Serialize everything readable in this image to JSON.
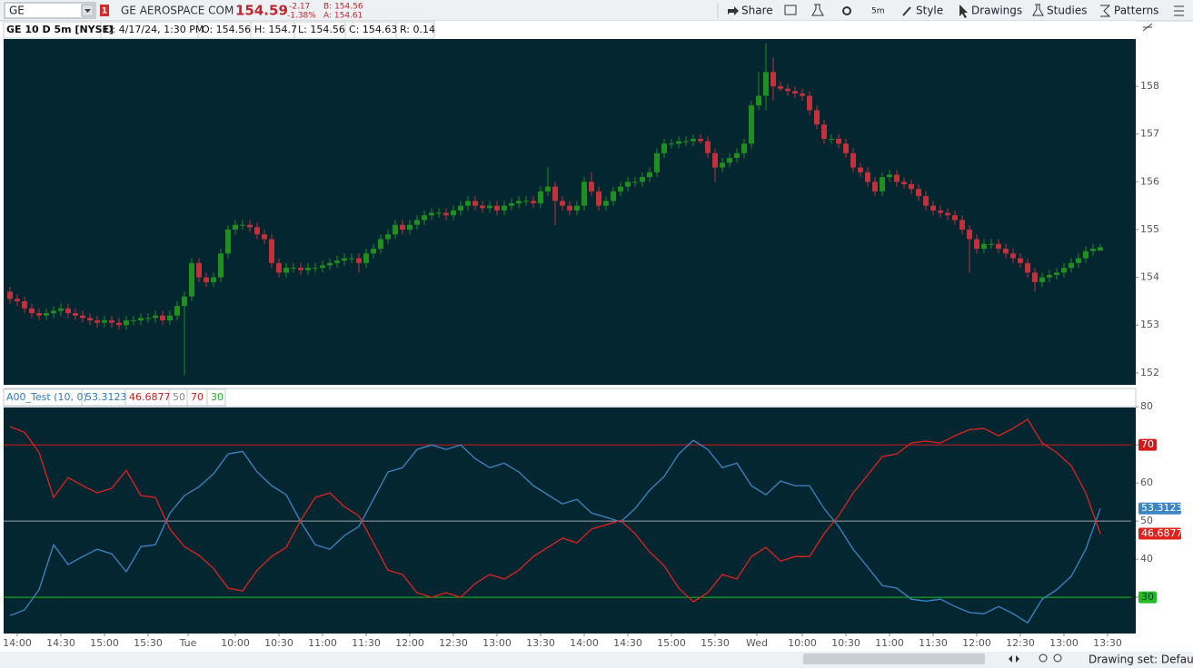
{
  "toolbar": {
    "symbol": "GE",
    "alert": "1",
    "company": "GE AEROSPACE COM",
    "last": "154.59",
    "change": "-2.17",
    "change_pct": "-1.38%",
    "bid": "B: 154.56",
    "ask": "A: 154.61",
    "buttons": [
      "Share",
      "5m",
      "Style",
      "Drawings",
      "Studies",
      "Patterns"
    ]
  },
  "info_bar": {
    "symbol": "GE 10 D 5m [NYSE]",
    "date": "D: 4/17/24, 1:30 PM",
    "open": "O: 154.56",
    "high": "H: 154.7",
    "low": "L: 154.56",
    "close": "C: 154.63",
    "range": "R: 0.14"
  },
  "chart_data": [
    {
      "type": "candlestick",
      "up_color": "#1f8f1f",
      "down_color": "#c2313a",
      "background": "#032631",
      "xlim": [
        -0.875,
        154.875
      ],
      "ylim": [
        151.75,
        158.99
      ],
      "yticks": [
        152,
        153,
        154,
        155,
        156,
        157,
        158
      ],
      "open": [
        153.7,
        153.55,
        153.5,
        153.35,
        153.25,
        153.2,
        153.25,
        153.3,
        153.35,
        153.25,
        153.2,
        153.15,
        153.1,
        153.05,
        153.1,
        153.05,
        153.0,
        153.1,
        153.1,
        153.15,
        153.15,
        153.2,
        153.1,
        153.2,
        153.4,
        153.6,
        154.3,
        154.0,
        153.9,
        154.0,
        154.5,
        155.0,
        155.1,
        155.1,
        155.05,
        154.9,
        154.8,
        154.3,
        154.1,
        154.2,
        154.2,
        154.15,
        154.2,
        154.2,
        154.25,
        154.3,
        154.35,
        154.4,
        154.4,
        154.3,
        154.5,
        154.6,
        154.8,
        154.9,
        155.1,
        155.0,
        155.1,
        155.2,
        155.3,
        155.35,
        155.35,
        155.3,
        155.4,
        155.5,
        155.6,
        155.5,
        155.45,
        155.5,
        155.4,
        155.5,
        155.55,
        155.6,
        155.6,
        155.55,
        155.8,
        155.9,
        155.6,
        155.5,
        155.4,
        155.5,
        156.0,
        155.8,
        155.5,
        155.6,
        155.8,
        155.9,
        156.0,
        156.0,
        156.1,
        156.2,
        156.6,
        156.8,
        156.8,
        156.85,
        156.85,
        156.9,
        156.85,
        156.6,
        156.3,
        156.4,
        156.5,
        156.6,
        156.8,
        157.6,
        157.8,
        158.3,
        158.0,
        157.95,
        157.9,
        157.85,
        157.8,
        157.5,
        157.2,
        156.9,
        156.9,
        156.8,
        156.6,
        156.3,
        156.2,
        156.0,
        155.8,
        156.1,
        156.15,
        156.0,
        155.95,
        155.85,
        155.7,
        155.5,
        155.4,
        155.35,
        155.3,
        155.2,
        155.0,
        154.8,
        154.6,
        154.7,
        154.7,
        154.6,
        154.5,
        154.4,
        154.3,
        154.1,
        153.9,
        154.0,
        154.05,
        154.1,
        154.2,
        154.3,
        154.4,
        154.55,
        154.56
      ],
      "high": [
        153.8,
        153.65,
        153.6,
        153.45,
        153.35,
        153.35,
        153.4,
        153.45,
        153.45,
        153.35,
        153.3,
        153.25,
        153.2,
        153.2,
        153.2,
        153.15,
        153.2,
        153.2,
        153.25,
        153.25,
        153.3,
        153.3,
        153.3,
        153.5,
        153.7,
        154.4,
        154.4,
        154.1,
        154.1,
        154.6,
        155.1,
        155.2,
        155.2,
        155.2,
        155.15,
        155.0,
        154.9,
        154.4,
        154.3,
        154.3,
        154.3,
        154.3,
        154.3,
        154.35,
        154.4,
        154.45,
        154.5,
        154.5,
        154.5,
        154.6,
        154.7,
        154.9,
        155.0,
        155.2,
        155.2,
        155.2,
        155.3,
        155.4,
        155.45,
        155.45,
        155.45,
        155.5,
        155.6,
        155.7,
        155.7,
        155.6,
        155.6,
        155.6,
        155.6,
        155.65,
        155.7,
        155.7,
        155.7,
        155.9,
        156.3,
        156.0,
        155.7,
        155.6,
        155.6,
        156.1,
        156.2,
        155.9,
        155.7,
        155.9,
        156.0,
        156.1,
        156.1,
        156.2,
        156.3,
        156.7,
        156.9,
        156.9,
        156.95,
        156.95,
        157.0,
        157.0,
        156.95,
        156.7,
        156.5,
        156.6,
        156.7,
        156.9,
        157.7,
        158.3,
        158.9,
        158.6,
        158.1,
        158.05,
        158.0,
        157.95,
        157.9,
        157.6,
        157.3,
        157.0,
        157.0,
        156.9,
        156.7,
        156.4,
        156.3,
        156.1,
        156.2,
        156.25,
        156.25,
        156.1,
        156.05,
        155.95,
        155.8,
        155.6,
        155.5,
        155.45,
        155.4,
        155.3,
        155.1,
        154.9,
        154.8,
        154.8,
        154.8,
        154.7,
        154.6,
        154.5,
        154.4,
        154.2,
        154.1,
        154.15,
        154.2,
        154.3,
        154.4,
        154.5,
        154.65,
        154.7,
        154.7
      ],
      "low": [
        153.45,
        153.4,
        153.25,
        153.15,
        153.1,
        153.1,
        153.15,
        153.2,
        153.15,
        153.1,
        153.05,
        153.0,
        152.95,
        152.95,
        152.95,
        152.9,
        152.9,
        153.0,
        153.0,
        153.05,
        153.05,
        153.0,
        153.0,
        153.1,
        151.95,
        153.5,
        153.9,
        153.8,
        153.8,
        153.9,
        154.4,
        154.9,
        155.0,
        154.95,
        154.8,
        154.7,
        154.2,
        154.0,
        154.0,
        154.1,
        154.05,
        154.05,
        154.1,
        154.1,
        154.15,
        154.2,
        154.25,
        154.3,
        154.1,
        154.2,
        154.4,
        154.5,
        154.7,
        154.8,
        154.9,
        154.9,
        155.0,
        155.1,
        155.2,
        155.25,
        155.2,
        155.2,
        155.3,
        155.4,
        155.4,
        155.35,
        155.35,
        155.3,
        155.3,
        155.4,
        155.45,
        155.5,
        155.45,
        155.45,
        155.7,
        155.1,
        155.4,
        155.3,
        155.3,
        155.4,
        155.7,
        155.4,
        155.4,
        155.5,
        155.7,
        155.8,
        155.9,
        155.9,
        156.0,
        156.1,
        156.5,
        156.7,
        156.7,
        156.75,
        156.75,
        156.8,
        156.5,
        156.0,
        156.2,
        156.3,
        156.4,
        156.5,
        156.7,
        157.5,
        157.5,
        157.7,
        157.9,
        157.8,
        157.75,
        157.7,
        157.4,
        157.1,
        156.8,
        156.8,
        156.7,
        156.5,
        156.2,
        156.1,
        155.9,
        155.7,
        155.7,
        156.0,
        155.9,
        155.85,
        155.75,
        155.6,
        155.4,
        155.3,
        155.25,
        155.2,
        155.1,
        154.9,
        154.1,
        154.5,
        154.5,
        154.6,
        154.5,
        154.4,
        154.3,
        154.2,
        154.0,
        153.7,
        153.8,
        153.9,
        153.95,
        154.0,
        154.1,
        154.2,
        154.3,
        154.45,
        154.56
      ],
      "close": [
        153.55,
        153.5,
        153.35,
        153.25,
        153.2,
        153.25,
        153.3,
        153.35,
        153.25,
        153.2,
        153.15,
        153.1,
        153.05,
        153.1,
        153.05,
        153.0,
        153.1,
        153.1,
        153.15,
        153.15,
        153.2,
        153.1,
        153.2,
        153.4,
        153.6,
        154.3,
        154.0,
        153.9,
        154.0,
        154.5,
        155.0,
        155.1,
        155.1,
        155.05,
        154.9,
        154.8,
        154.3,
        154.1,
        154.2,
        154.2,
        154.15,
        154.2,
        154.2,
        154.25,
        154.3,
        154.35,
        154.4,
        154.4,
        154.3,
        154.5,
        154.6,
        154.8,
        154.9,
        155.1,
        155.0,
        155.1,
        155.2,
        155.3,
        155.35,
        155.35,
        155.3,
        155.4,
        155.5,
        155.6,
        155.5,
        155.45,
        155.5,
        155.4,
        155.5,
        155.55,
        155.6,
        155.6,
        155.55,
        155.8,
        155.9,
        155.6,
        155.5,
        155.4,
        155.5,
        156.0,
        155.8,
        155.5,
        155.6,
        155.8,
        155.9,
        156.0,
        156.0,
        156.1,
        156.2,
        156.6,
        156.8,
        156.8,
        156.85,
        156.85,
        156.9,
        156.85,
        156.6,
        156.3,
        156.4,
        156.5,
        156.6,
        156.8,
        157.6,
        157.8,
        158.3,
        158.0,
        157.95,
        157.9,
        157.85,
        157.8,
        157.5,
        157.2,
        156.9,
        156.9,
        156.8,
        156.6,
        156.3,
        156.2,
        156.0,
        155.8,
        156.1,
        156.15,
        156.0,
        155.95,
        155.85,
        155.7,
        155.5,
        155.4,
        155.35,
        155.3,
        155.2,
        155.0,
        154.8,
        154.6,
        154.7,
        154.7,
        154.6,
        154.5,
        154.4,
        154.3,
        154.1,
        153.9,
        154.0,
        154.05,
        154.1,
        154.2,
        154.3,
        154.4,
        154.55,
        154.6,
        154.63
      ]
    },
    {
      "type": "line",
      "title": "A00_Test (10, 0)",
      "background": "#032631",
      "xlim": [
        -0.875,
        154.875
      ],
      "ylim": [
        20.5,
        79.8
      ],
      "yticks": [
        30,
        40,
        50,
        60,
        70,
        80
      ],
      "xticks": [
        {
          "value": 1,
          "label": "14:00"
        },
        {
          "value": 7,
          "label": "14:30"
        },
        {
          "value": 13,
          "label": "15:00"
        },
        {
          "value": 19,
          "label": "15:30"
        },
        {
          "value": 24.5,
          "label": "Tue"
        },
        {
          "value": 31,
          "label": "10:00"
        },
        {
          "value": 37,
          "label": "10:30"
        },
        {
          "value": 43,
          "label": "11:00"
        },
        {
          "value": 49,
          "label": "11:30"
        },
        {
          "value": 55,
          "label": "12:00"
        },
        {
          "value": 61,
          "label": "12:30"
        },
        {
          "value": 67,
          "label": "13:00"
        },
        {
          "value": 73,
          "label": "13:30"
        },
        {
          "value": 79,
          "label": "14:00"
        },
        {
          "value": 85,
          "label": "14:30"
        },
        {
          "value": 91,
          "label": "15:00"
        },
        {
          "value": 97,
          "label": "15:30"
        },
        {
          "value": 102.75,
          "label": "Wed"
        },
        {
          "value": 109,
          "label": "10:00"
        },
        {
          "value": 115,
          "label": "10:30"
        },
        {
          "value": 121,
          "label": "11:00"
        },
        {
          "value": 127,
          "label": "11:30"
        },
        {
          "value": 133,
          "label": "12:00"
        },
        {
          "value": 139,
          "label": "12:30"
        },
        {
          "value": 145,
          "label": "13:00"
        },
        {
          "value": 151,
          "label": "13:30"
        }
      ],
      "x": [
        0,
        2,
        4,
        6,
        8,
        10,
        12,
        14,
        16,
        18,
        20,
        22,
        24,
        26,
        28,
        30,
        32,
        34,
        36,
        38,
        40,
        42,
        44,
        46,
        48,
        50,
        52,
        54,
        56,
        58,
        60,
        62,
        64,
        66,
        68,
        70,
        72,
        74,
        76,
        78,
        80,
        82,
        84,
        86,
        88,
        90,
        92,
        94,
        96,
        98,
        100,
        102,
        104,
        106,
        108,
        110,
        112,
        114,
        116,
        118,
        120,
        122,
        124,
        126,
        128,
        130,
        132,
        134,
        136,
        138,
        140,
        142,
        144,
        146,
        148,
        150
      ],
      "series": [
        {
          "color": "#3d86c6",
          "values": [
            25.2,
            26.7,
            32,
            43.8,
            38.6,
            40.7,
            42.6,
            41.4,
            36.7,
            43.3,
            43.8,
            52.1,
            56.7,
            59,
            62.4,
            67.6,
            68.3,
            62.9,
            59.3,
            56.9,
            49.8,
            43.8,
            42.6,
            46.2,
            48.6,
            55.7,
            62.9,
            64,
            68.8,
            70,
            68.8,
            70,
            66.4,
            64,
            65.2,
            62.9,
            59.3,
            56.9,
            54.5,
            55.7,
            52.1,
            51,
            49.8,
            53.3,
            58.1,
            61.7,
            67.6,
            71.2,
            68.8,
            64,
            65.2,
            59.3,
            56.9,
            60.5,
            59.3,
            59.3,
            53.3,
            48.6,
            42.6,
            37.9,
            33.1,
            32.4,
            29.5,
            29,
            29.5,
            27.6,
            26,
            25.7,
            27.6,
            25.7,
            23.3,
            29.5,
            32,
            35.5,
            42.6,
            53.3123
          ]
        },
        {
          "color": "#e0231d",
          "values": [
            74.8,
            73.3,
            68,
            56.2,
            61.4,
            59.3,
            57.4,
            58.6,
            63.3,
            56.7,
            56.2,
            47.9,
            43.3,
            41,
            37.6,
            32.4,
            31.7,
            37.1,
            40.7,
            43.1,
            50.2,
            56.2,
            57.4,
            53.8,
            51.4,
            44.3,
            37.1,
            36,
            31.2,
            30,
            31.2,
            30,
            33.6,
            36,
            34.8,
            37.1,
            40.7,
            43.1,
            45.5,
            44.3,
            47.9,
            49,
            50.2,
            46.7,
            41.9,
            38.3,
            32.4,
            28.8,
            31.2,
            36,
            34.8,
            40.7,
            43.1,
            39.5,
            40.7,
            40.7,
            46.7,
            51.4,
            57.4,
            62.1,
            66.9,
            67.6,
            70.5,
            71,
            70.5,
            72.4,
            74,
            74.3,
            72.4,
            74.3,
            76.7,
            70.5,
            68,
            64.5,
            57.4,
            46.6877
          ]
        }
      ],
      "levels": [
        {
          "value": 50,
          "color": "#9aa3a8",
          "badge": false
        },
        {
          "value": 70,
          "color": "#d11a1a",
          "badge": true
        },
        {
          "value": 30,
          "color": "#20c020",
          "badge": true
        }
      ]
    }
  ],
  "status_bar": {
    "drawing_set": "Drawing set: Default"
  }
}
